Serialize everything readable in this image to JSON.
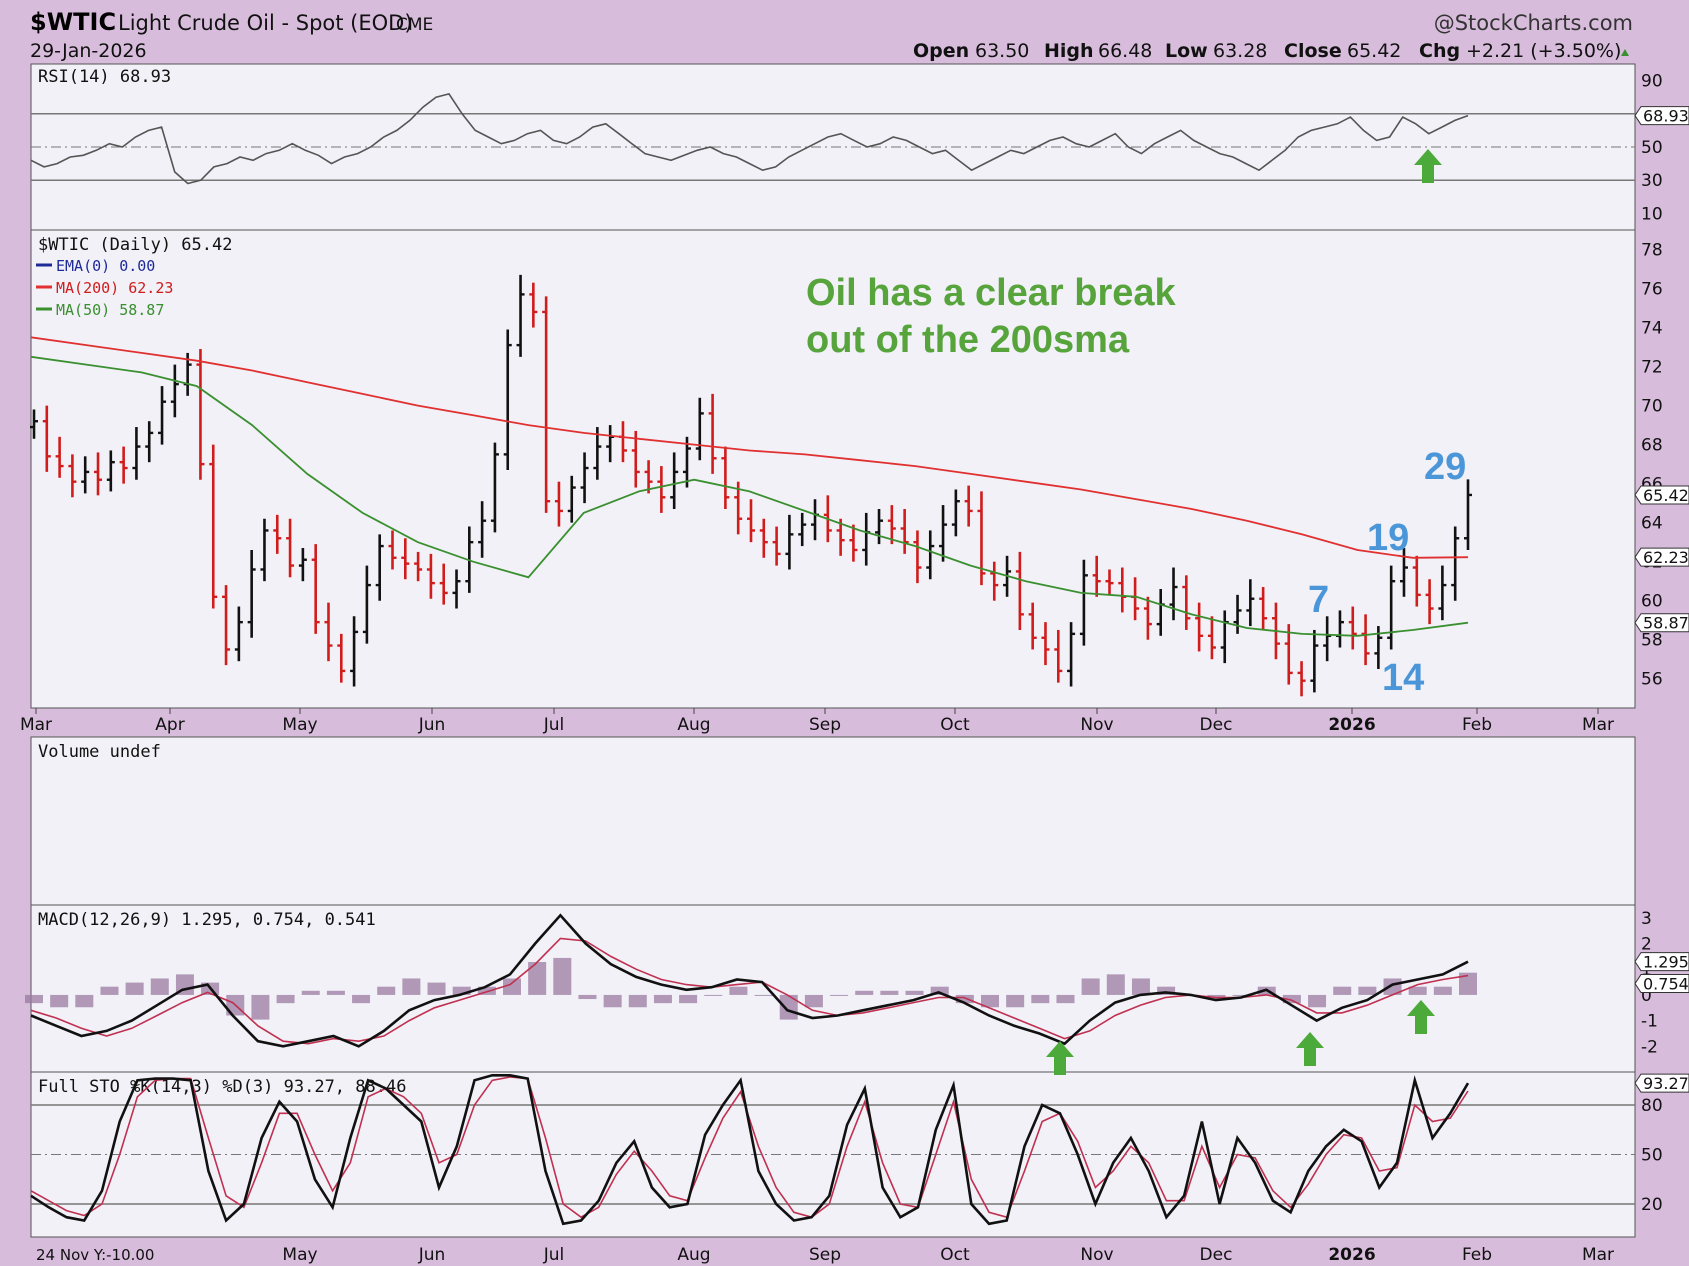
{
  "header": {
    "symbol": "$WTIC",
    "name": "Light Crude Oil - Spot (EOD)",
    "exchange": "CME",
    "date": "29-Jan-2026",
    "watermark": "@StockCharts.com",
    "open_label": "Open",
    "open": "63.50",
    "high_label": "High",
    "high": "66.48",
    "low_label": "Low",
    "low": "63.28",
    "close_label": "Close",
    "close": "65.42",
    "chg_label": "Chg",
    "chg": "+2.21 (+3.50%)"
  },
  "x_axis": {
    "labels": [
      "Mar",
      "Apr",
      "May",
      "Jun",
      "Jul",
      "Aug",
      "Sep",
      "Oct",
      "Nov",
      "Dec",
      "2026",
      "Feb",
      "Mar"
    ],
    "bottom_labels": [
      "May",
      "Jun",
      "Jul",
      "Aug",
      "Sep",
      "Oct",
      "Nov",
      "Dec",
      "2026",
      "Feb",
      "Mar"
    ],
    "bottom_left_note": "24 Nov Y:-10.00"
  },
  "annotations": {
    "note_line1": "Oil has a clear break",
    "note_line2": "out of the 200sma",
    "counts": [
      "29",
      "19",
      "7",
      "14"
    ]
  },
  "colors": {
    "background": "#d8bcdc",
    "panel": "#f1f1f7",
    "price_up": "#111111",
    "price_down": "#d11c1c",
    "ma200": "#e03030",
    "ma50": "#3a8f2f",
    "signal": "#c03050",
    "histogram": "#9a7aa0",
    "arrow": "#4caa3a",
    "count_label": "#4a96d8"
  },
  "chart_data": [
    {
      "panel": "rsi",
      "type": "line",
      "title": "RSI(14) 68.93",
      "value": 68.93,
      "ylim": [
        0,
        100
      ],
      "yticks": [
        10,
        30,
        50,
        90
      ],
      "reference_lines": [
        30,
        50,
        70
      ],
      "tag": "68.93",
      "values": [
        42,
        38,
        40,
        44,
        45,
        48,
        52,
        50,
        56,
        60,
        62,
        35,
        28,
        30,
        38,
        40,
        44,
        42,
        46,
        48,
        52,
        48,
        45,
        40,
        44,
        46,
        50,
        56,
        60,
        66,
        74,
        80,
        82,
        70,
        60,
        56,
        52,
        54,
        58,
        60,
        54,
        52,
        56,
        62,
        64,
        58,
        52,
        46,
        44,
        42,
        45,
        48,
        50,
        46,
        44,
        40,
        36,
        38,
        44,
        48,
        52,
        56,
        58,
        54,
        50,
        52,
        56,
        54,
        50,
        46,
        48,
        42,
        36,
        40,
        44,
        48,
        46,
        50,
        54,
        56,
        52,
        50,
        54,
        58,
        50,
        46,
        52,
        56,
        60,
        54,
        50,
        46,
        44,
        40,
        36,
        42,
        48,
        56,
        60,
        62,
        64,
        68,
        60,
        54,
        56,
        68,
        64,
        58,
        62,
        66,
        68.93
      ],
      "arrows_at": [
        "Jan 14"
      ]
    },
    {
      "panel": "price",
      "type": "ohlc",
      "title": "$WTIC (Daily) 65.42",
      "ylim": [
        54.5,
        79
      ],
      "yticks": [
        56,
        58,
        60,
        62,
        64,
        66,
        68,
        70,
        72,
        74,
        76,
        78
      ],
      "last": 65.42,
      "tags": [
        "65.42",
        "62.23",
        "58.87"
      ],
      "legend": [
        "EMA(0) 0.00",
        "MA(200) 62.23",
        "MA(50) 58.87"
      ],
      "closes": [
        69.2,
        67.4,
        66.9,
        66.1,
        66.6,
        66.2,
        67.1,
        66.8,
        67.9,
        68.6,
        70.2,
        71.1,
        72.1,
        67.0,
        60.2,
        57.5,
        58.9,
        61.6,
        63.6,
        63.2,
        61.8,
        62.1,
        58.9,
        57.7,
        56.4,
        58.4,
        60.8,
        62.8,
        62.2,
        61.9,
        61.6,
        60.9,
        60.4,
        61.0,
        63.0,
        64.1,
        67.5,
        73.1,
        75.7,
        74.8,
        65.1,
        64.6,
        65.8,
        66.8,
        67.9,
        68.4,
        67.7,
        66.6,
        66.1,
        65.3,
        66.6,
        67.8,
        69.6,
        67.3,
        65.3,
        64.2,
        63.6,
        63.0,
        62.4,
        63.4,
        63.9,
        64.4,
        63.6,
        63.1,
        62.6,
        63.5,
        64.1,
        63.7,
        63.0,
        61.7,
        62.8,
        63.9,
        65.1,
        64.6,
        61.4,
        60.8,
        61.5,
        59.3,
        58.1,
        57.5,
        56.4,
        58.3,
        61.3,
        61.0,
        60.9,
        60.2,
        59.6,
        58.8,
        59.8,
        60.7,
        59.1,
        58.2,
        57.6,
        58.9,
        59.5,
        60.1,
        59.1,
        57.8,
        56.3,
        55.9,
        57.7,
        58.2,
        58.9,
        58.3,
        57.3,
        58.1,
        61.0,
        61.7,
        60.3,
        59.6,
        60.8,
        63.2,
        65.42
      ],
      "ma200": [
        73.5,
        73.1,
        72.7,
        72.3,
        71.8,
        71.2,
        70.6,
        70.0,
        69.5,
        69.0,
        68.6,
        68.3,
        68.0,
        67.7,
        67.5,
        67.2,
        66.9,
        66.5,
        66.1,
        65.7,
        65.2,
        64.7,
        64.1,
        63.4,
        62.6,
        62.2,
        62.23
      ],
      "ma50": [
        72.5,
        72.1,
        71.7,
        71.0,
        69.0,
        66.5,
        64.5,
        63.0,
        62.0,
        61.2,
        64.5,
        65.6,
        66.2,
        65.6,
        64.6,
        63.6,
        62.8,
        61.8,
        61.0,
        60.4,
        60.2,
        59.3,
        58.6,
        58.3,
        58.2,
        58.5,
        58.87
      ],
      "counts_at": {
        "7": "Dec 29",
        "14": "Jan 14",
        "19": "Jan 19",
        "29": "Jan 29"
      }
    },
    {
      "panel": "volume",
      "type": "bar",
      "title": "Volume undef",
      "values": []
    },
    {
      "panel": "macd",
      "type": "line",
      "title": "MACD(12,26,9) 1.295, 0.754, 0.541",
      "macd": 1.295,
      "signal": 0.754,
      "histogram": 0.541,
      "ylim": [
        -3,
        3.5
      ],
      "yticks": [
        -2,
        -1,
        0,
        1,
        2,
        3
      ],
      "tags": [
        "1.295",
        "0.754"
      ],
      "macd_values": [
        -0.8,
        -1.2,
        -1.6,
        -1.4,
        -1.0,
        -0.4,
        0.2,
        0.4,
        -0.8,
        -1.8,
        -2.0,
        -1.8,
        -1.6,
        -2.0,
        -1.4,
        -0.6,
        -0.2,
        0.0,
        0.3,
        0.8,
        2.0,
        3.1,
        2.0,
        1.2,
        0.7,
        0.4,
        0.2,
        0.3,
        0.6,
        0.5,
        -0.6,
        -0.9,
        -0.8,
        -0.6,
        -0.4,
        -0.2,
        0.1,
        -0.3,
        -0.8,
        -1.2,
        -1.5,
        -1.9,
        -1.0,
        -0.3,
        0.0,
        0.1,
        0.0,
        -0.2,
        -0.1,
        0.2,
        -0.4,
        -1.0,
        -0.5,
        -0.2,
        0.4,
        0.6,
        0.8,
        1.295
      ],
      "signal_values": [
        -0.6,
        -0.9,
        -1.3,
        -1.6,
        -1.3,
        -0.8,
        -0.3,
        0.1,
        -0.3,
        -1.2,
        -1.8,
        -1.9,
        -1.7,
        -1.8,
        -1.6,
        -1.0,
        -0.5,
        -0.2,
        0.1,
        0.4,
        1.2,
        2.2,
        2.1,
        1.5,
        1.0,
        0.6,
        0.4,
        0.3,
        0.4,
        0.5,
        0.0,
        -0.6,
        -0.8,
        -0.7,
        -0.5,
        -0.3,
        -0.1,
        -0.1,
        -0.5,
        -0.9,
        -1.3,
        -1.7,
        -1.4,
        -0.8,
        -0.4,
        -0.1,
        0.0,
        -0.1,
        -0.1,
        0.0,
        -0.2,
        -0.7,
        -0.7,
        -0.4,
        0.0,
        0.4,
        0.6,
        0.754
      ],
      "arrows_at": [
        "Oct 22",
        "Dec 29",
        "Jan 19"
      ]
    },
    {
      "panel": "stochastic",
      "type": "line",
      "title": "Full STO %K(14,3) %D(3) 93.27, 88.46",
      "k": 93.27,
      "d": 88.46,
      "ylim": [
        0,
        100
      ],
      "yticks": [
        20,
        50,
        80
      ],
      "reference_lines": [
        20,
        50,
        80
      ],
      "tag": "93.27",
      "k_values": [
        25,
        18,
        12,
        10,
        28,
        70,
        95,
        96,
        96,
        95,
        40,
        10,
        20,
        60,
        82,
        70,
        35,
        18,
        60,
        95,
        90,
        80,
        70,
        30,
        55,
        95,
        98,
        98,
        96,
        40,
        8,
        10,
        22,
        45,
        58,
        30,
        18,
        20,
        62,
        80,
        95,
        40,
        20,
        10,
        12,
        25,
        68,
        90,
        30,
        12,
        18,
        65,
        92,
        20,
        8,
        10,
        55,
        80,
        75,
        50,
        20,
        45,
        60,
        40,
        12,
        25,
        70,
        20,
        60,
        45,
        22,
        15,
        40,
        55,
        65,
        58,
        30,
        45,
        95,
        60,
        75,
        93.27
      ],
      "d_values": [
        28,
        22,
        16,
        13,
        20,
        50,
        85,
        95,
        96,
        96,
        60,
        25,
        18,
        45,
        75,
        75,
        50,
        28,
        45,
        85,
        90,
        85,
        75,
        45,
        50,
        80,
        95,
        97,
        96,
        60,
        20,
        12,
        18,
        38,
        52,
        40,
        25,
        22,
        48,
        72,
        88,
        55,
        30,
        15,
        12,
        20,
        55,
        82,
        45,
        20,
        18,
        50,
        82,
        35,
        15,
        12,
        40,
        70,
        75,
        58,
        30,
        40,
        55,
        45,
        22,
        22,
        55,
        30,
        50,
        48,
        28,
        18,
        32,
        50,
        62,
        60,
        40,
        42,
        80,
        70,
        72,
        88.46
      ]
    }
  ]
}
